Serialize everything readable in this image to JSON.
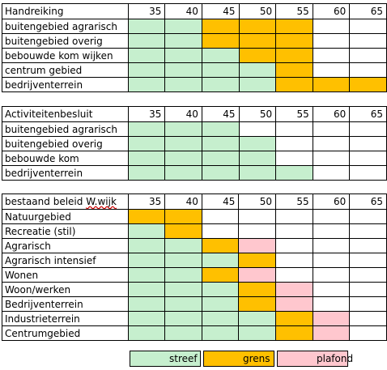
{
  "columns": [
    "35",
    "40",
    "45",
    "50",
    "55",
    "60",
    "65"
  ],
  "tables": [
    {
      "title": "Handreiking",
      "rows": [
        {
          "label": "buitengebied agrarisch",
          "cells": [
            "s",
            "s",
            "g",
            "g",
            "g",
            "w",
            "w"
          ]
        },
        {
          "label": "buitengebied overig",
          "cells": [
            "s",
            "s",
            "g",
            "g",
            "g",
            "w",
            "w"
          ]
        },
        {
          "label": "bebouwde kom wijken",
          "cells": [
            "s",
            "s",
            "s",
            "g",
            "g",
            "w",
            "w"
          ]
        },
        {
          "label": "centrum gebied",
          "cells": [
            "s",
            "s",
            "s",
            "s",
            "g",
            "w",
            "w"
          ]
        },
        {
          "label": "bedrijventerrein",
          "cells": [
            "s",
            "s",
            "s",
            "s",
            "g",
            "g",
            "g"
          ]
        }
      ]
    },
    {
      "title": "Activiteitenbesluit",
      "rows": [
        {
          "label": "buitengebied agrarisch",
          "cells": [
            "s",
            "s",
            "s",
            "w",
            "w",
            "w",
            "w"
          ]
        },
        {
          "label": "buitengebied overig",
          "cells": [
            "s",
            "s",
            "s",
            "s",
            "w",
            "w",
            "w"
          ]
        },
        {
          "label": "bebouwde kom",
          "cells": [
            "s",
            "s",
            "s",
            "s",
            "w",
            "w",
            "w"
          ]
        },
        {
          "label": "bedrijventerrein",
          "cells": [
            "s",
            "s",
            "s",
            "s",
            "s",
            "w",
            "w"
          ]
        }
      ]
    },
    {
      "title": "bestaand beleid W.wijk",
      "title_plain": "bestaand beleid ",
      "title_marked": "W.wijk",
      "rows": [
        {
          "label": "Natuurgebied",
          "cells": [
            "g",
            "g",
            "w",
            "w",
            "w",
            "w",
            "w"
          ]
        },
        {
          "label": "Recreatie (stil)",
          "cells": [
            "s",
            "g",
            "w",
            "w",
            "w",
            "w",
            "w"
          ]
        },
        {
          "label": "Agrarisch",
          "cells": [
            "s",
            "s",
            "g",
            "p",
            "w",
            "w",
            "w"
          ]
        },
        {
          "label": "Agrarisch intensief",
          "cells": [
            "s",
            "s",
            "s",
            "g",
            "w",
            "w",
            "w"
          ]
        },
        {
          "label": "Wonen",
          "cells": [
            "s",
            "s",
            "g",
            "p",
            "w",
            "w",
            "w"
          ]
        },
        {
          "label": "Woon/werken",
          "cells": [
            "s",
            "s",
            "s",
            "g",
            "p",
            "w",
            "w"
          ]
        },
        {
          "label": "Bedrijventerrein",
          "cells": [
            "s",
            "s",
            "s",
            "g",
            "p",
            "w",
            "w"
          ]
        },
        {
          "label": "Industrieterrein",
          "cells": [
            "s",
            "s",
            "s",
            "s",
            "g",
            "p",
            "w"
          ]
        },
        {
          "label": "Centrumgebied",
          "cells": [
            "s",
            "s",
            "s",
            "s",
            "g",
            "p",
            "w"
          ]
        }
      ]
    }
  ],
  "legend": [
    {
      "key": "s",
      "label": "streef",
      "color": "#c6efce"
    },
    {
      "key": "g",
      "label": "grens",
      "color": "#ffc000"
    },
    {
      "key": "p",
      "label": "plafond",
      "color": "#ffc7ce"
    }
  ],
  "colors": {
    "s": "#c6efce",
    "g": "#ffc000",
    "p": "#ffc7ce",
    "w": "#ffffff"
  }
}
